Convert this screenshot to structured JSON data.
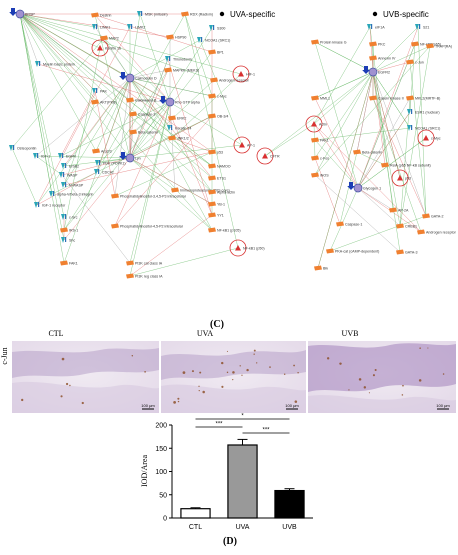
{
  "networks": {
    "legend_uva": "UVA-specific",
    "legend_uvb": "UVB-specific",
    "uva_nodes": [
      "BRSP",
      "Destrin",
      "MSK (mitosin)",
      "RDX (Radixin)",
      "LIMK1",
      "LIMK2",
      "MAP2",
      "HSP90",
      "S300",
      "Kenitin 16",
      "NCOA1 (SRC1)",
      "Myelin basic protein",
      "Thioredoxin",
      "BP1",
      "HIF-1",
      "PAK",
      "Calmodulin D",
      "MAPKK (MEKS)",
      "Androgen receptor",
      "AKT(PKB)",
      "Calcineurin B",
      "Caspase-3",
      "Beta-catenin",
      "Rho GTP alpha",
      "c-Myc",
      "Osteopontin",
      "IGF-1",
      "EGFR",
      "ErbB2",
      "Arp2/3",
      "PDK (PDPK1)",
      "CDC42",
      "N-WASP",
      "WASP",
      "alpha-V/beta-3 integrin",
      "IGF-1 receptor",
      "PI3K cat class IA",
      "PI3K reg class IA",
      "Lyn",
      "c-Src",
      "IRS-1",
      "Shc",
      "FAK1",
      "Keratin 14",
      "OB-3/4",
      "ERK2",
      "JNK1/2",
      "p53",
      "Immunoproteasome (20S core)",
      "NAMOO",
      "ETS1",
      "Alpha-actin",
      "YB-1",
      "YY1",
      "NF-kB1 (p105)",
      "NF-kB1 (p50)",
      "AP-1",
      "Phosphatidylinositol-3,4,5-P3 intracellular",
      "Phosphatidylinositol-4,5-P2 intracellular"
    ],
    "uvb_nodes": [
      "eIF1A",
      "S21",
      "Protein kinase G",
      "PKC",
      "NF-kBP(p65)",
      "TRAP(RA)",
      "Annexin IV",
      "EGFR2",
      "c-Jun",
      "Casein kinase II",
      "MKL2(MRTF-B)",
      "MML1",
      "ESR1 (nuclear)",
      "Actin",
      "NCOA1 (SRC1)",
      "FAK1",
      "c-Fos",
      "Beta-catenin",
      "RelA (p65 NF-kB subunit)",
      "CFTR",
      "iNOS",
      "Glycogen 1",
      "p53",
      "c-Myc",
      "AP-2A",
      "CREB1",
      "GATA-2",
      "Caspase-1",
      "Androgen receptor",
      "PKA-cat (cAMP-dependent)",
      "GATA-3",
      "Blk"
    ]
  },
  "panel_c": "(C)",
  "panel_d": "(D)",
  "histology": {
    "row_label": "c-Jun",
    "columns": [
      "CTL",
      "UVA",
      "UVB"
    ],
    "scale_bar": "100 μm"
  },
  "chart_data": {
    "type": "bar",
    "categories": [
      "CTL",
      "UVA",
      "UVB"
    ],
    "values": [
      20,
      157,
      59
    ],
    "errors": [
      2,
      12,
      4
    ],
    "colors": [
      "#ffffff",
      "#999999",
      "#000000"
    ],
    "ylabel": "IOD/Area",
    "xlabel": "",
    "title": "",
    "ylim": [
      0,
      200
    ],
    "yticks": [
      0,
      50,
      100,
      150,
      200
    ],
    "grid": false,
    "significance": [
      {
        "pair": [
          "CTL",
          "UVB"
        ],
        "label": "*"
      },
      {
        "pair": [
          "CTL",
          "UVA"
        ],
        "label": "***"
      },
      {
        "pair": [
          "UVA",
          "UVB"
        ],
        "label": "***"
      }
    ]
  }
}
